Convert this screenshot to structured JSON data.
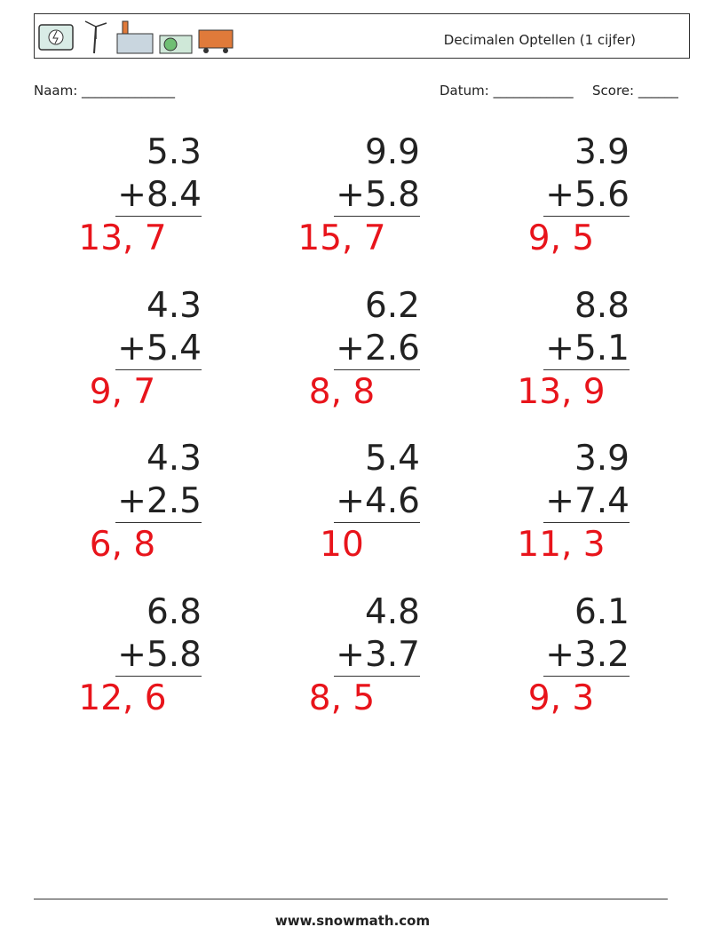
{
  "header": {
    "title": "Decimalen Optellen (1 cijfer)"
  },
  "fields": {
    "name": "Naam: ______________",
    "date": "Datum: ____________",
    "score": "Score: ______"
  },
  "problems": [
    {
      "top": "5.3",
      "bottom": "+8.4",
      "answer": "13, 7"
    },
    {
      "top": "9.9",
      "bottom": "+5.8",
      "answer": "15, 7"
    },
    {
      "top": "3.9",
      "bottom": "+5.6",
      "answer": "9, 5"
    },
    {
      "top": "4.3",
      "bottom": "+5.4",
      "answer": "9, 7"
    },
    {
      "top": "6.2",
      "bottom": "+2.6",
      "answer": "8, 8"
    },
    {
      "top": "8.8",
      "bottom": "+5.1",
      "answer": "13, 9"
    },
    {
      "top": "4.3",
      "bottom": "+2.5",
      "answer": "6, 8"
    },
    {
      "top": "5.4",
      "bottom": "+4.6",
      "answer": "10"
    },
    {
      "top": "3.9",
      "bottom": "+7.4",
      "answer": "11, 3"
    },
    {
      "top": "6.8",
      "bottom": "+5.8",
      "answer": "12, 6"
    },
    {
      "top": "4.8",
      "bottom": "+3.7",
      "answer": "8, 5"
    },
    {
      "top": "6.1",
      "bottom": "+3.2",
      "answer": "9, 3"
    }
  ],
  "footer": {
    "text": "www.snowmath.com"
  }
}
